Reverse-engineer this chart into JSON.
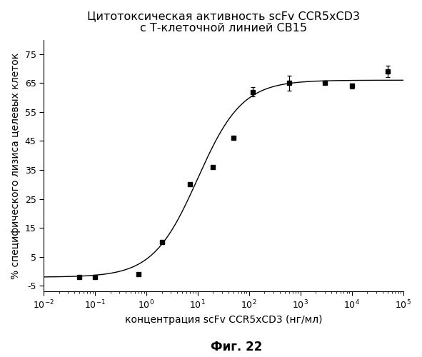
{
  "title_line1": "Цитотоксическая активность scFv CCR5xCD3",
  "title_line2": "с Т-клеточной линией CB15",
  "xlabel": "концентрация scFv CCR5xCD3 (нг/мл)",
  "ylabel": "% специфического лизиса целевых клеток",
  "fig_label": "Фиг. 22",
  "data_x": [
    0.05,
    0.1,
    0.7,
    2.0,
    7.0,
    20.0,
    50.0,
    120.0,
    600.0,
    3000.0,
    10000.0,
    50000.0
  ],
  "data_y": [
    -2.0,
    -2.0,
    -1.0,
    10.0,
    30.0,
    36.0,
    46.0,
    62.0,
    65.0,
    65.0,
    64.0,
    69.0
  ],
  "data_yerr": [
    0.3,
    0.3,
    0.3,
    0.5,
    0.5,
    0.5,
    0.5,
    1.5,
    2.5,
    0.5,
    0.8,
    2.0
  ],
  "ylim": [
    -7,
    80
  ],
  "yticks": [
    -5,
    5,
    15,
    25,
    35,
    45,
    55,
    65,
    75
  ],
  "ytick_labels": [
    "-5",
    "5",
    "15",
    "25",
    "35",
    "45",
    "55",
    "65",
    "75"
  ],
  "background_color": "#ffffff",
  "line_color": "#000000",
  "marker_color": "#000000",
  "title_fontsize": 11.5,
  "label_fontsize": 10,
  "tick_fontsize": 9,
  "fig_label_fontsize": 12
}
